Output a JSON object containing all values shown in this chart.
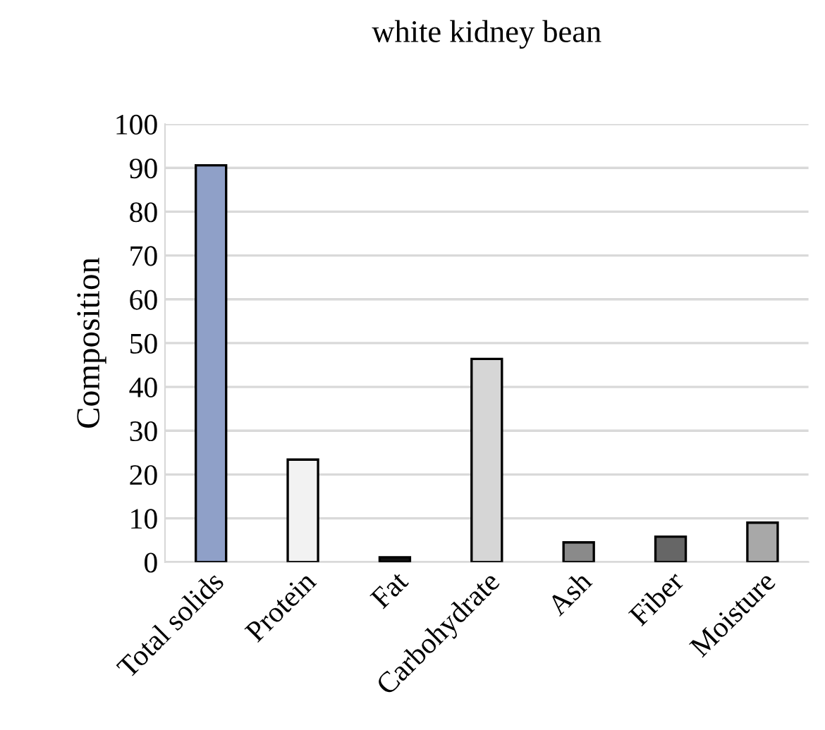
{
  "chart_data": {
    "type": "bar",
    "title": "white kidney bean",
    "ylabel": "Composition",
    "categories": [
      "Total solids",
      "Protein",
      "Fat",
      "Carbohydrate",
      "Ash",
      "Fiber",
      "Moisture"
    ],
    "values": [
      90.6,
      23.4,
      1.1,
      46.4,
      4.5,
      5.8,
      9.0
    ],
    "colors": [
      "#8fa0c8",
      "#f2f2f2",
      "#111111",
      "#d6d6d6",
      "#8a8a8a",
      "#666666",
      "#a8a8a8"
    ],
    "ylim": [
      0,
      100
    ],
    "yticks": [
      0,
      10,
      20,
      30,
      40,
      50,
      60,
      70,
      80,
      90,
      100
    ],
    "grid": "y",
    "legend": false
  }
}
